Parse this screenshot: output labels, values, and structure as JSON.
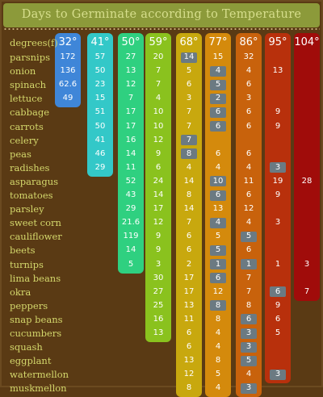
{
  "title": "Days to Germinate according to Temperature",
  "chart_data": {
    "type": "table",
    "row_header": "degrees(f)",
    "columns": [
      {
        "label": "32°",
        "color": "#3f86d8"
      },
      {
        "label": "41°",
        "color": "#33c8c8"
      },
      {
        "label": "50°",
        "color": "#2fd080"
      },
      {
        "label": "59°",
        "color": "#8ac21e"
      },
      {
        "label": "68°",
        "color": "#c8a80e"
      },
      {
        "label": "77°",
        "color": "#d48a0c"
      },
      {
        "label": "86°",
        "color": "#c8620c"
      },
      {
        "label": "95°",
        "color": "#b8300c"
      },
      {
        "label": "104°",
        "color": "#a00c0a"
      }
    ],
    "rows": [
      {
        "label": "parsnips",
        "values": [
          "172",
          "57",
          "27",
          "20",
          "14",
          "15",
          "32",
          "",
          ""
        ],
        "highlight": [
          4
        ]
      },
      {
        "label": "onion",
        "values": [
          "136",
          "50",
          "13",
          "7",
          "5",
          "4",
          "4",
          "13",
          ""
        ],
        "highlight": [
          5
        ]
      },
      {
        "label": "spinach",
        "values": [
          "62.6",
          "23",
          "12",
          "7",
          "6",
          "5",
          "6",
          "",
          ""
        ],
        "highlight": [
          5
        ]
      },
      {
        "label": "lettuce",
        "values": [
          "49",
          "15",
          "7",
          "4",
          "3",
          "2",
          "3",
          "",
          ""
        ],
        "highlight": [
          5
        ]
      },
      {
        "label": "cabbage",
        "values": [
          "",
          "51",
          "17",
          "10",
          "7",
          "6",
          "6",
          "9",
          ""
        ],
        "highlight": [
          5
        ]
      },
      {
        "label": "carrots",
        "values": [
          "",
          "50",
          "17",
          "10",
          "7",
          "6",
          "6",
          "9",
          ""
        ],
        "highlight": [
          5
        ]
      },
      {
        "label": "celery",
        "values": [
          "",
          "41",
          "16",
          "12",
          "7",
          "",
          "",
          "",
          ""
        ],
        "highlight": [
          4
        ]
      },
      {
        "label": "peas",
        "values": [
          "",
          "46",
          "14",
          "9",
          "8",
          "6",
          "6",
          "",
          ""
        ],
        "highlight": [
          4
        ]
      },
      {
        "label": "radishes",
        "values": [
          "",
          "29",
          "11",
          "6",
          "4",
          "4",
          "4",
          "3",
          ""
        ],
        "highlight": [
          7
        ]
      },
      {
        "label": "asparagus",
        "values": [
          "",
          "",
          "52",
          "24",
          "14",
          "10",
          "11",
          "19",
          "28"
        ],
        "highlight": [
          5
        ]
      },
      {
        "label": "tomatoes",
        "values": [
          "",
          "",
          "43",
          "14",
          "8",
          "6",
          "6",
          "9",
          ""
        ],
        "highlight": [
          5
        ]
      },
      {
        "label": "parsley",
        "values": [
          "",
          "",
          "29",
          "17",
          "14",
          "13",
          "12",
          "",
          ""
        ],
        "highlight": []
      },
      {
        "label": "sweet corn",
        "values": [
          "",
          "",
          "21.6",
          "12",
          "7",
          "4",
          "4",
          "3",
          ""
        ],
        "highlight": [
          5
        ]
      },
      {
        "label": "cauliflower",
        "values": [
          "",
          "",
          "119",
          "9",
          "6",
          "5",
          "5",
          "",
          ""
        ],
        "highlight": [
          6
        ]
      },
      {
        "label": "beets",
        "values": [
          "",
          "",
          "14",
          "9",
          "6",
          "5",
          "6",
          "",
          ""
        ],
        "highlight": [
          5
        ]
      },
      {
        "label": "turnips",
        "values": [
          "",
          "",
          "5",
          "3",
          "2",
          "1",
          "1",
          "1",
          "3"
        ],
        "highlight": [
          5,
          6
        ]
      },
      {
        "label": "lima beans",
        "values": [
          "",
          "",
          "",
          "30",
          "17",
          "6",
          "7",
          "",
          ""
        ],
        "highlight": [
          5
        ]
      },
      {
        "label": "okra",
        "values": [
          "",
          "",
          "",
          "27",
          "17",
          "12",
          "7",
          "6",
          "7"
        ],
        "highlight": [
          7
        ]
      },
      {
        "label": "peppers",
        "values": [
          "",
          "",
          "",
          "25",
          "13",
          "8",
          "8",
          "9",
          ""
        ],
        "highlight": [
          5
        ]
      },
      {
        "label": "snap beans",
        "values": [
          "",
          "",
          "",
          "16",
          "11",
          "8",
          "6",
          "6",
          ""
        ],
        "highlight": [
          6
        ]
      },
      {
        "label": "cucumbers",
        "values": [
          "",
          "",
          "",
          "13",
          "6",
          "4",
          "3",
          "5",
          ""
        ],
        "highlight": [
          6
        ]
      },
      {
        "label": "squash",
        "values": [
          "",
          "",
          "",
          "",
          "6",
          "4",
          "3",
          "",
          ""
        ],
        "highlight": [
          6
        ]
      },
      {
        "label": "eggplant",
        "values": [
          "",
          "",
          "",
          "",
          "13",
          "8",
          "5",
          "",
          ""
        ],
        "highlight": [
          6
        ]
      },
      {
        "label": "watermellon",
        "values": [
          "",
          "",
          "",
          "",
          "12",
          "5",
          "4",
          "3",
          ""
        ],
        "highlight": [
          7
        ]
      },
      {
        "label": "muskmellon",
        "values": [
          "",
          "",
          "",
          "",
          "8",
          "4",
          "3",
          "",
          ""
        ],
        "highlight": [
          6
        ]
      }
    ]
  }
}
